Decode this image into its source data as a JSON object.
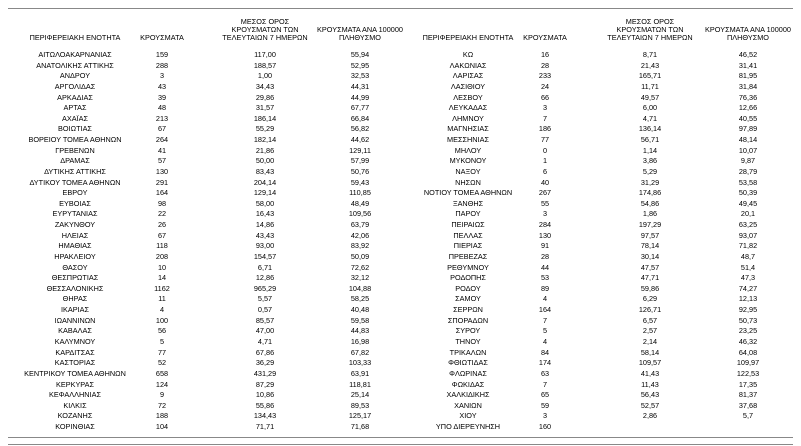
{
  "table": {
    "headers": [
      [
        "ΠΕΡΙΦΕΡΕΙΑΚΗ ΕΝΟΤΗΤΑ"
      ],
      [
        "ΚΡΟΥΣΜΑΤΑ"
      ],
      [
        "ΜΕΣΟΣ ΟΡΟΣ",
        "ΚΡΟΥΣΜΑΤΩΝ ΤΩΝ",
        "ΤΕΛΕΥΤΑΙΩΝ 7 ΗΜΕΡΩΝ"
      ],
      [
        "ΚΡΟΥΣΜΑΤΑ ΑΝΑ 100000",
        "ΠΛΗΘΥΣΜΟ"
      ]
    ],
    "left_rows": [
      [
        "ΑΙΤΩΛΟΑΚΑΡΝΑΝΙΑΣ",
        "159",
        "117,00",
        "55,94"
      ],
      [
        "ΑΝΑΤΟΛΙΚΗΣ ΑΤΤΙΚΗΣ",
        "288",
        "188,57",
        "52,95"
      ],
      [
        "ΑΝΔΡΟΥ",
        "3",
        "1,00",
        "32,53"
      ],
      [
        "ΑΡΓΟΛΙΔΑΣ",
        "43",
        "34,43",
        "44,31"
      ],
      [
        "ΑΡΚΑΔΙΑΣ",
        "39",
        "29,86",
        "44,99"
      ],
      [
        "ΑΡΤΑΣ",
        "48",
        "31,57",
        "67,77"
      ],
      [
        "ΑΧΑΪΑΣ",
        "213",
        "186,14",
        "66,84"
      ],
      [
        "ΒΟΙΩΤΙΑΣ",
        "67",
        "55,29",
        "56,82"
      ],
      [
        "ΒΟΡΕΙΟΥ ΤΟΜΕΑ ΑΘΗΝΩΝ",
        "264",
        "182,14",
        "44,62"
      ],
      [
        "ΓΡΕΒΕΝΩΝ",
        "41",
        "21,86",
        "129,11"
      ],
      [
        "ΔΡΑΜΑΣ",
        "57",
        "50,00",
        "57,99"
      ],
      [
        "ΔΥΤΙΚΗΣ ΑΤΤΙΚΗΣ",
        "130",
        "83,43",
        "50,76"
      ],
      [
        "ΔΥΤΙΚΟΥ ΤΟΜΕΑ ΑΘΗΝΩΝ",
        "291",
        "204,14",
        "59,43"
      ],
      [
        "ΕΒΡΟΥ",
        "164",
        "129,14",
        "110,85"
      ],
      [
        "ΕΥΒΟΙΑΣ",
        "98",
        "58,00",
        "48,49"
      ],
      [
        "ΕΥΡΥΤΑΝΙΑΣ",
        "22",
        "16,43",
        "109,56"
      ],
      [
        "ΖΑΚΥΝΘΟΥ",
        "26",
        "14,86",
        "63,79"
      ],
      [
        "ΗΛΕΙΑΣ",
        "67",
        "43,43",
        "42,06"
      ],
      [
        "ΗΜΑΘΙΑΣ",
        "118",
        "93,00",
        "83,92"
      ],
      [
        "ΗΡΑΚΛΕΙΟΥ",
        "208",
        "154,57",
        "50,09"
      ],
      [
        "ΘΑΣΟΥ",
        "10",
        "6,71",
        "72,62"
      ],
      [
        "ΘΕΣΠΡΩΤΙΑΣ",
        "14",
        "12,86",
        "32,12"
      ],
      [
        "ΘΕΣΣΑΛΟΝΙΚΗΣ",
        "1162",
        "965,29",
        "104,88"
      ],
      [
        "ΘΗΡΑΣ",
        "11",
        "5,57",
        "58,25"
      ],
      [
        "ΙΚΑΡΙΑΣ",
        "4",
        "0,57",
        "40,48"
      ],
      [
        "ΙΩΑΝΝΙΝΩΝ",
        "100",
        "85,57",
        "59,58"
      ],
      [
        "ΚΑΒΑΛΑΣ",
        "56",
        "47,00",
        "44,83"
      ],
      [
        "ΚΑΛΥΜΝΟΥ",
        "5",
        "4,71",
        "16,98"
      ],
      [
        "ΚΑΡΔΙΤΣΑΣ",
        "77",
        "67,86",
        "67,82"
      ],
      [
        "ΚΑΣΤΟΡΙΑΣ",
        "52",
        "36,29",
        "103,33"
      ],
      [
        "ΚΕΝΤΡΙΚΟΥ ΤΟΜΕΑ ΑΘΗΝΩΝ",
        "658",
        "431,29",
        "63,91"
      ],
      [
        "ΚΕΡΚΥΡΑΣ",
        "124",
        "87,29",
        "118,81"
      ],
      [
        "ΚΕΦΑΛΛΗΝΙΑΣ",
        "9",
        "10,86",
        "25,14"
      ],
      [
        "ΚΙΛΚΙΣ",
        "72",
        "55,86",
        "89,53"
      ],
      [
        "ΚΟΖΑΝΗΣ",
        "188",
        "134,43",
        "125,17"
      ],
      [
        "ΚΟΡΙΝΘΙΑΣ",
        "104",
        "71,71",
        "71,68"
      ]
    ],
    "right_rows": [
      [
        "ΚΩ",
        "16",
        "8,71",
        "46,52"
      ],
      [
        "ΛΑΚΩΝΙΑΣ",
        "28",
        "21,43",
        "31,41"
      ],
      [
        "ΛΑΡΙΣΑΣ",
        "233",
        "165,71",
        "81,95"
      ],
      [
        "ΛΑΣΙΘΙΟΥ",
        "24",
        "11,71",
        "31,84"
      ],
      [
        "ΛΕΣΒΟΥ",
        "66",
        "49,57",
        "76,36"
      ],
      [
        "ΛΕΥΚΑΔΑΣ",
        "3",
        "6,00",
        "12,66"
      ],
      [
        "ΛΗΜΝΟΥ",
        "7",
        "4,71",
        "40,55"
      ],
      [
        "ΜΑΓΝΗΣΙΑΣ",
        "186",
        "136,14",
        "97,89"
      ],
      [
        "ΜΕΣΣΗΝΙΑΣ",
        "77",
        "56,71",
        "48,14"
      ],
      [
        "ΜΗΛΟΥ",
        "0",
        "1,14",
        "10,07"
      ],
      [
        "ΜΥΚΟΝΟΥ",
        "1",
        "3,86",
        "9,87"
      ],
      [
        "ΝΑΞΟΥ",
        "6",
        "5,29",
        "28,79"
      ],
      [
        "ΝΗΣΩΝ",
        "40",
        "31,29",
        "53,58"
      ],
      [
        "ΝΟΤΙΟΥ ΤΟΜΕΑ ΑΘΗΝΩΝ",
        "267",
        "174,86",
        "50,39"
      ],
      [
        "ΞΑΝΘΗΣ",
        "55",
        "54,86",
        "49,45"
      ],
      [
        "ΠΑΡΟΥ",
        "3",
        "1,86",
        "20,1"
      ],
      [
        "ΠΕΙΡΑΙΩΣ",
        "284",
        "197,29",
        "63,25"
      ],
      [
        "ΠΕΛΛΑΣ",
        "130",
        "97,57",
        "93,07"
      ],
      [
        "ΠΙΕΡΙΑΣ",
        "91",
        "78,14",
        "71,82"
      ],
      [
        "ΠΡΕΒΕΖΑΣ",
        "28",
        "30,14",
        "48,7"
      ],
      [
        "ΡΕΘΥΜΝΟΥ",
        "44",
        "47,57",
        "51,4"
      ],
      [
        "ΡΟΔΟΠΗΣ",
        "53",
        "47,71",
        "47,3"
      ],
      [
        "ΡΟΔΟΥ",
        "89",
        "59,86",
        "74,27"
      ],
      [
        "ΣΑΜΟΥ",
        "4",
        "6,29",
        "12,13"
      ],
      [
        "ΣΕΡΡΩΝ",
        "164",
        "126,71",
        "92,95"
      ],
      [
        "ΣΠΟΡΑΔΩΝ",
        "7",
        "6,57",
        "50,73"
      ],
      [
        "ΣΥΡΟΥ",
        "5",
        "2,57",
        "23,25"
      ],
      [
        "ΤΗΝΟΥ",
        "4",
        "2,14",
        "46,32"
      ],
      [
        "ΤΡΙΚΑΛΩΝ",
        "84",
        "58,14",
        "64,08"
      ],
      [
        "ΦΘΙΩΤΙΔΑΣ",
        "174",
        "109,57",
        "109,97"
      ],
      [
        "ΦΛΩΡΙΝΑΣ",
        "63",
        "41,43",
        "122,53"
      ],
      [
        "ΦΩΚΙΔΑΣ",
        "7",
        "11,43",
        "17,35"
      ],
      [
        "ΧΑΛΚΙΔΙΚΗΣ",
        "65",
        "56,43",
        "81,37"
      ],
      [
        "ΧΑΝΙΩΝ",
        "59",
        "52,57",
        "37,68"
      ],
      [
        "ΧΙΟΥ",
        "3",
        "2,86",
        "5,7"
      ],
      [
        "ΥΠΟ ΔΙΕΡΕΥΝΗΣΗ",
        "160"
      ]
    ]
  }
}
